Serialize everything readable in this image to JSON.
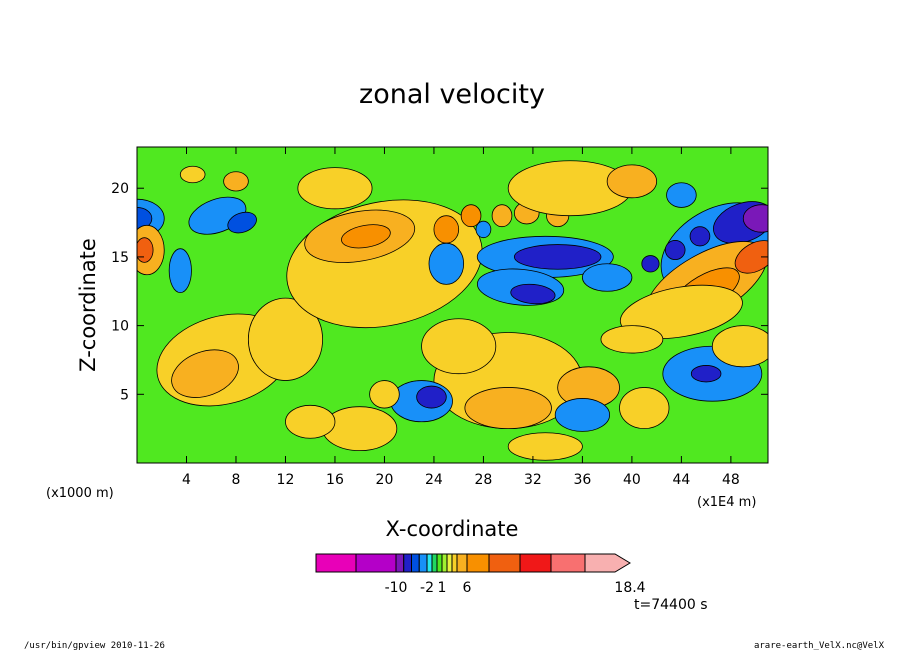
{
  "chart_data": {
    "type": "heatmap",
    "title": "zonal velocity",
    "xlabel": "X-coordinate",
    "ylabel": "Z-coordinate",
    "x_unit_left": "(x1000 m)",
    "x_unit_right": "(x1E4 m)",
    "xlim": [
      0,
      51
    ],
    "ylim": [
      0,
      23
    ],
    "x_ticks": [
      4,
      8,
      12,
      16,
      20,
      24,
      28,
      32,
      36,
      40,
      44,
      48
    ],
    "y_ticks": [
      5,
      10,
      15,
      20
    ],
    "colorbar": {
      "boundaries": [
        -14,
        -12,
        -10,
        -8,
        -6,
        -4,
        -2,
        -1,
        0,
        1,
        2,
        3,
        4,
        6,
        8,
        10,
        12,
        14,
        18.4
      ],
      "colors": [
        "#e800b8",
        "#b400c8",
        "#7a18b8",
        "#2020c8",
        "#0050e0",
        "#1890f8",
        "#28e8f0",
        "#20d860",
        "#50e820",
        "#a0f030",
        "#e8f040",
        "#f8d028",
        "#f8b020",
        "#f89000",
        "#f06010",
        "#f01818",
        "#f87070",
        "#f8b0b0"
      ],
      "labels": [
        {
          "value": -10,
          "text": "-10"
        },
        {
          "value": -2,
          "text": "-2"
        },
        {
          "value": 1,
          "text": "1"
        },
        {
          "value": 6,
          "text": "6"
        },
        {
          "value": 18.4,
          "text": "18.4"
        }
      ]
    },
    "time_label": "t=74400 s",
    "field_regions": [
      {
        "x": 0,
        "y": 17.8,
        "rx": 2.2,
        "ry": 1.4,
        "v": -3,
        "rot": 0
      },
      {
        "x": 0,
        "y": 17.8,
        "rx": 1.2,
        "ry": 0.8,
        "v": -6,
        "rot": 0
      },
      {
        "x": 6.5,
        "y": 18,
        "rx": 2.4,
        "ry": 1.2,
        "v": -3,
        "rot": -20
      },
      {
        "x": 8.5,
        "y": 17.5,
        "rx": 1.2,
        "ry": 0.7,
        "v": -6,
        "rot": -20
      },
      {
        "x": 3.5,
        "y": 14,
        "rx": 0.9,
        "ry": 1.6,
        "v": -3,
        "rot": 0
      },
      {
        "x": 0.8,
        "y": 15.5,
        "rx": 1.4,
        "ry": 1.8,
        "v": 5,
        "rot": 0
      },
      {
        "x": 0.6,
        "y": 15.5,
        "rx": 0.7,
        "ry": 0.9,
        "v": 9,
        "rot": 0
      },
      {
        "x": 7,
        "y": 7.5,
        "rx": 5.5,
        "ry": 3.2,
        "v": 3.5,
        "rot": -15
      },
      {
        "x": 5.5,
        "y": 6.5,
        "rx": 2.8,
        "ry": 1.6,
        "v": 5,
        "rot": -20
      },
      {
        "x": 12,
        "y": 9,
        "rx": 3,
        "ry": 3,
        "v": 3.5,
        "rot": 0
      },
      {
        "x": 20,
        "y": 14.5,
        "rx": 8,
        "ry": 4.5,
        "v": 3.5,
        "rot": -12
      },
      {
        "x": 18,
        "y": 16.5,
        "rx": 4.5,
        "ry": 1.8,
        "v": 5,
        "rot": -10
      },
      {
        "x": 18.5,
        "y": 16.5,
        "rx": 2,
        "ry": 0.8,
        "v": 7,
        "rot": -10
      },
      {
        "x": 25,
        "y": 17,
        "rx": 1,
        "ry": 1,
        "v": 7,
        "rot": 0
      },
      {
        "x": 27,
        "y": 18,
        "rx": 0.8,
        "ry": 0.8,
        "v": 7,
        "rot": 0
      },
      {
        "x": 29.5,
        "y": 18,
        "rx": 0.8,
        "ry": 0.8,
        "v": 5,
        "rot": 0
      },
      {
        "x": 31.5,
        "y": 18.2,
        "rx": 1,
        "ry": 0.8,
        "v": 5,
        "rot": 0
      },
      {
        "x": 34,
        "y": 18,
        "rx": 0.9,
        "ry": 0.8,
        "v": 5,
        "rot": 0
      },
      {
        "x": 28,
        "y": 17,
        "rx": 0.6,
        "ry": 0.6,
        "v": -4,
        "rot": 0
      },
      {
        "x": 33,
        "y": 15,
        "rx": 5.5,
        "ry": 1.5,
        "v": -3,
        "rot": 0
      },
      {
        "x": 34,
        "y": 15,
        "rx": 3.5,
        "ry": 0.9,
        "v": -7,
        "rot": 0
      },
      {
        "x": 31,
        "y": 12.8,
        "rx": 3.5,
        "ry": 1.3,
        "v": -3,
        "rot": 5
      },
      {
        "x": 32,
        "y": 12.3,
        "rx": 1.8,
        "ry": 0.7,
        "v": -7,
        "rot": 5
      },
      {
        "x": 25,
        "y": 14.5,
        "rx": 1.4,
        "ry": 1.5,
        "v": -3,
        "rot": 0
      },
      {
        "x": 38,
        "y": 13.5,
        "rx": 2,
        "ry": 1,
        "v": -2.5,
        "rot": 0
      },
      {
        "x": 47,
        "y": 15.5,
        "rx": 5,
        "ry": 3,
        "v": -3,
        "rot": -30
      },
      {
        "x": 49,
        "y": 17.5,
        "rx": 2.5,
        "ry": 1.4,
        "v": -7,
        "rot": -20
      },
      {
        "x": 50.5,
        "y": 17.8,
        "rx": 1.5,
        "ry": 1,
        "v": -9,
        "rot": 0
      },
      {
        "x": 43.5,
        "y": 15.5,
        "rx": 0.8,
        "ry": 0.7,
        "v": -7,
        "rot": 0
      },
      {
        "x": 45.5,
        "y": 16.5,
        "rx": 0.8,
        "ry": 0.7,
        "v": -7,
        "rot": 0
      },
      {
        "x": 41.5,
        "y": 14.5,
        "rx": 0.7,
        "ry": 0.6,
        "v": -7,
        "rot": 0
      },
      {
        "x": 46,
        "y": 13,
        "rx": 5.5,
        "ry": 2.2,
        "v": 5,
        "rot": -30
      },
      {
        "x": 46,
        "y": 12.5,
        "rx": 3,
        "ry": 1.2,
        "v": 7,
        "rot": -30
      },
      {
        "x": 50,
        "y": 15,
        "rx": 1.8,
        "ry": 1,
        "v": 9,
        "rot": -30
      },
      {
        "x": 44,
        "y": 11,
        "rx": 5,
        "ry": 1.8,
        "v": 3.5,
        "rot": -10
      },
      {
        "x": 46.5,
        "y": 6.5,
        "rx": 4,
        "ry": 2,
        "v": -2.5,
        "rot": 0
      },
      {
        "x": 46,
        "y": 6.5,
        "rx": 1.2,
        "ry": 0.6,
        "v": -7,
        "rot": 0
      },
      {
        "x": 49,
        "y": 8.5,
        "rx": 2.5,
        "ry": 1.5,
        "v": 3.5,
        "rot": 0
      },
      {
        "x": 30,
        "y": 6,
        "rx": 6,
        "ry": 3.5,
        "v": 3.5,
        "rot": 0
      },
      {
        "x": 30,
        "y": 4,
        "rx": 3.5,
        "ry": 1.5,
        "v": 5,
        "rot": 0
      },
      {
        "x": 36.5,
        "y": 5.5,
        "rx": 2.5,
        "ry": 1.5,
        "v": 5,
        "rot": 0
      },
      {
        "x": 26,
        "y": 8.5,
        "rx": 3,
        "ry": 2,
        "v": 3.5,
        "rot": 0
      },
      {
        "x": 23,
        "y": 4.5,
        "rx": 2.5,
        "ry": 1.5,
        "v": -3,
        "rot": 0
      },
      {
        "x": 23.8,
        "y": 4.8,
        "rx": 1.2,
        "ry": 0.8,
        "v": -7,
        "rot": 0
      },
      {
        "x": 36,
        "y": 3.5,
        "rx": 2.2,
        "ry": 1.2,
        "v": -3,
        "rot": 0
      },
      {
        "x": 20,
        "y": 5,
        "rx": 1.2,
        "ry": 1,
        "v": 3.5,
        "rot": 0
      },
      {
        "x": 18,
        "y": 2.5,
        "rx": 3,
        "ry": 1.6,
        "v": 3.5,
        "rot": 0
      },
      {
        "x": 33,
        "y": 1.2,
        "rx": 3,
        "ry": 1,
        "v": 3.5,
        "rot": 0
      },
      {
        "x": 41,
        "y": 4,
        "rx": 2,
        "ry": 1.5,
        "v": 3.5,
        "rot": 0
      },
      {
        "x": 40,
        "y": 9,
        "rx": 2.5,
        "ry": 1,
        "v": 3.5,
        "rot": 0
      },
      {
        "x": 14,
        "y": 3,
        "rx": 2,
        "ry": 1.2,
        "v": 3.5,
        "rot": 0
      },
      {
        "x": 8,
        "y": 20.5,
        "rx": 1,
        "ry": 0.7,
        "v": 5,
        "rot": 0
      },
      {
        "x": 4.5,
        "y": 21,
        "rx": 1,
        "ry": 0.6,
        "v": 3.5,
        "rot": 0
      },
      {
        "x": 16,
        "y": 20,
        "rx": 3,
        "ry": 1.5,
        "v": 3.5,
        "rot": 0
      },
      {
        "x": 35,
        "y": 20,
        "rx": 5,
        "ry": 2,
        "v": 3.5,
        "rot": 0
      },
      {
        "x": 40,
        "y": 20.5,
        "rx": 2,
        "ry": 1.2,
        "v": 5,
        "rot": 0
      },
      {
        "x": 44,
        "y": 19.5,
        "rx": 1.2,
        "ry": 0.9,
        "v": -3,
        "rot": 0
      }
    ]
  },
  "footer": {
    "left": "/usr/bin/gpview  2010-11-26",
    "right": "arare-earth_VelX.nc@VelX"
  }
}
